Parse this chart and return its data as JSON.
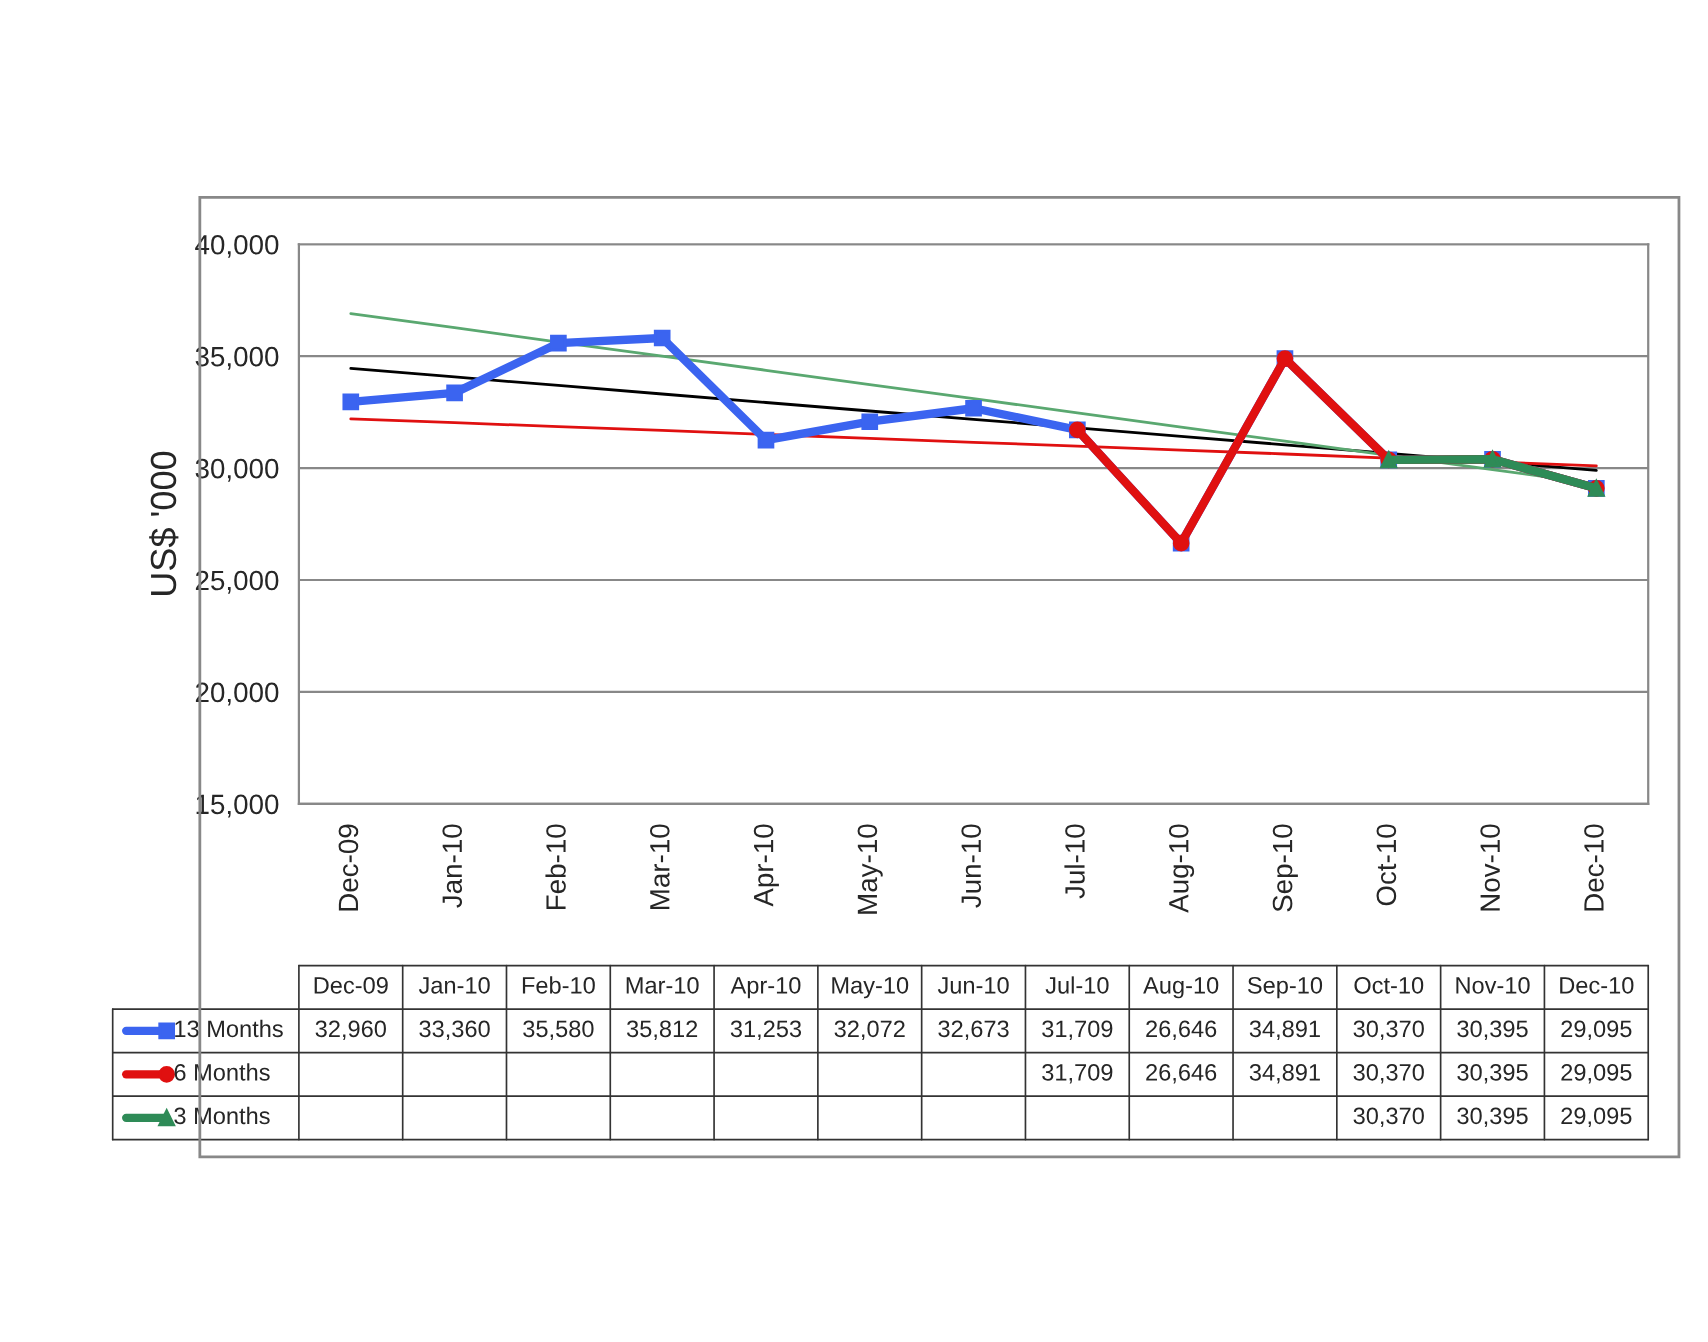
{
  "chart_data": {
    "type": "line",
    "categories": [
      "Dec-09",
      "Jan-10",
      "Feb-10",
      "Mar-10",
      "Apr-10",
      "May-10",
      "Jun-10",
      "Jul-10",
      "Aug-10",
      "Sep-10",
      "Oct-10",
      "Nov-10",
      "Dec-10"
    ],
    "ylabel": "US$ '000",
    "ylim": [
      15000,
      40000
    ],
    "yticks": [
      {
        "value": 15000,
        "label": "15,000"
      },
      {
        "value": 20000,
        "label": "20,000"
      },
      {
        "value": 25000,
        "label": "25,000"
      },
      {
        "value": 30000,
        "label": "30,000"
      },
      {
        "value": 35000,
        "label": "35,000"
      },
      {
        "value": 40000,
        "label": "40,000"
      }
    ],
    "grid": "y",
    "legend": "bottom left",
    "series": [
      {
        "name": "13 Months",
        "color": "#3b64f0",
        "marker": "square",
        "values": [
          32960,
          33360,
          35580,
          35812,
          31253,
          32072,
          32673,
          31709,
          26646,
          34891,
          30370,
          30395,
          29095
        ],
        "value_labels": [
          "32,960",
          "33,360",
          "35,580",
          "35,812",
          "31,253",
          "32,072",
          "32,673",
          "31,709",
          "26,646",
          "34,891",
          "30,370",
          "30,395",
          "29,095"
        ]
      },
      {
        "name": "6 Months",
        "color": "#e01010",
        "marker": "circle",
        "values": [
          null,
          null,
          null,
          null,
          null,
          null,
          null,
          31709,
          26646,
          34891,
          30370,
          30395,
          29095
        ],
        "value_labels": [
          null,
          null,
          null,
          null,
          null,
          null,
          null,
          "31,709",
          "26,646",
          "34,891",
          "30,370",
          "30,395",
          "29,095"
        ]
      },
      {
        "name": "3 Months",
        "color": "#2e8b57",
        "marker": "triangle",
        "values": [
          null,
          null,
          null,
          null,
          null,
          null,
          null,
          null,
          null,
          null,
          30370,
          30395,
          29095
        ],
        "value_labels": [
          null,
          null,
          null,
          null,
          null,
          null,
          null,
          null,
          null,
          null,
          "30,370",
          "30,395",
          "29,095"
        ]
      },
      {
        "type": "line",
        "marker": "none",
        "color": "#000000",
        "values": [
          34450,
          34070,
          33690,
          33310,
          32930,
          32550,
          32180,
          31800,
          31420,
          31040,
          30660,
          30280,
          29900
        ]
      },
      {
        "type": "line",
        "marker": "none",
        "color": "#e01010",
        "values": [
          32200,
          32030,
          31850,
          31680,
          31500,
          31330,
          31150,
          30980,
          30800,
          30630,
          30450,
          30280,
          30100
        ]
      },
      {
        "type": "line",
        "marker": "none",
        "color": "#5aa870",
        "values": [
          36900,
          36270,
          35630,
          35000,
          34370,
          33730,
          33100,
          32470,
          31830,
          31200,
          30570,
          29930,
          29300
        ]
      }
    ]
  }
}
